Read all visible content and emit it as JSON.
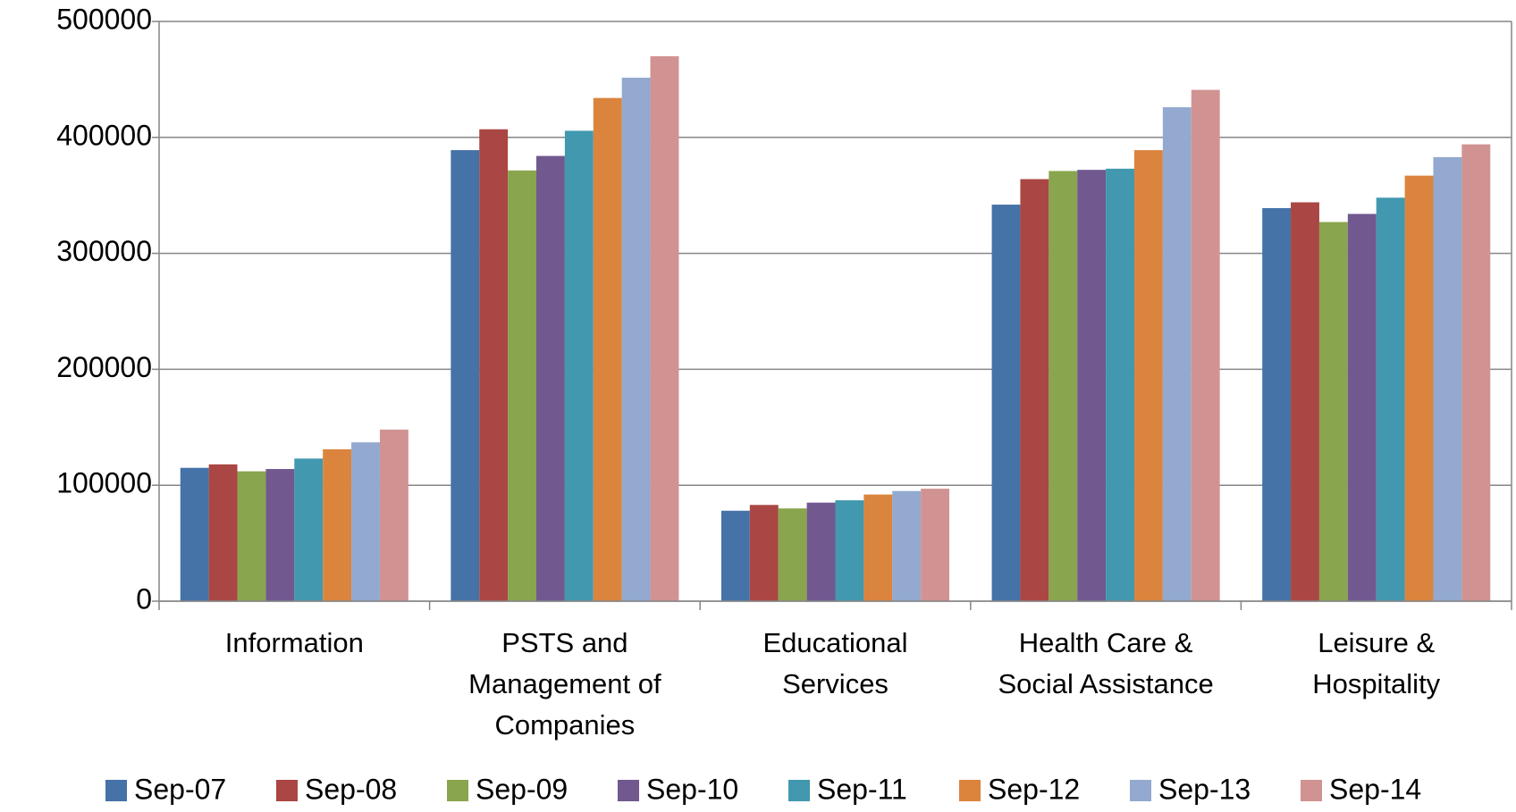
{
  "chart_data": {
    "type": "bar",
    "categories": [
      "Information",
      "PSTS and\nManagement of\nCompanies",
      "Educational\nServices",
      "Health Care &\nSocial Assistance",
      "Leisure &\nHospitality"
    ],
    "series": [
      {
        "name": "Sep-07",
        "color": "#4572a7",
        "values": [
          115000,
          389000,
          78000,
          342000,
          339000
        ]
      },
      {
        "name": "Sep-08",
        "color": "#aa4643",
        "values": [
          118000,
          407000,
          83000,
          364000,
          344000
        ]
      },
      {
        "name": "Sep-09",
        "color": "#89a54e",
        "values": [
          112000,
          371500,
          80000,
          371000,
          327000
        ]
      },
      {
        "name": "Sep-10",
        "color": "#71588f",
        "values": [
          114000,
          384000,
          85000,
          372000,
          334000
        ]
      },
      {
        "name": "Sep-11",
        "color": "#4198af",
        "values": [
          123000,
          405700,
          87000,
          373000,
          348000
        ]
      },
      {
        "name": "Sep-12",
        "color": "#db843d",
        "values": [
          131000,
          434000,
          92000,
          389000,
          367000
        ]
      },
      {
        "name": "Sep-13",
        "color": "#93a9cf",
        "values": [
          137000,
          451500,
          95000,
          426000,
          383000
        ]
      },
      {
        "name": "Sep-14",
        "color": "#d19392",
        "values": [
          148000,
          470000,
          97000,
          441000,
          394000
        ]
      }
    ],
    "ylim": [
      0,
      500000
    ],
    "yticks": [
      0,
      100000,
      200000,
      300000,
      400000,
      500000
    ],
    "grid": true
  }
}
